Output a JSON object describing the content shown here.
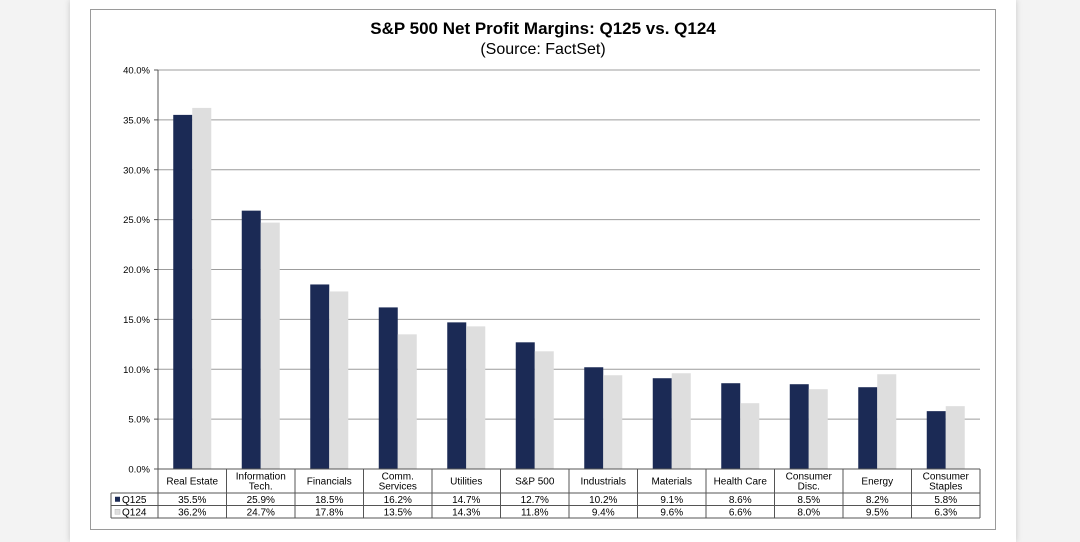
{
  "chart_data": {
    "type": "bar",
    "title": "S&P 500 Net Profit Margins: Q125 vs. Q124",
    "subtitle": "(Source: FactSet)",
    "categories": [
      [
        "Real Estate"
      ],
      [
        "Information",
        "Tech."
      ],
      [
        "Financials"
      ],
      [
        "Comm.",
        "Services"
      ],
      [
        "Utilities"
      ],
      [
        "S&P 500"
      ],
      [
        "Industrials"
      ],
      [
        "Materials"
      ],
      [
        "Health Care"
      ],
      [
        "Consumer",
        "Disc."
      ],
      [
        "Energy"
      ],
      [
        "Consumer",
        "Staples"
      ]
    ],
    "series": [
      {
        "name": "Q125",
        "color": "#1b2a55",
        "values": [
          35.5,
          25.9,
          18.5,
          16.2,
          14.7,
          12.7,
          10.2,
          9.1,
          8.6,
          8.5,
          8.2,
          5.8
        ],
        "labels": [
          "35.5%",
          "25.9%",
          "18.5%",
          "16.2%",
          "14.7%",
          "12.7%",
          "10.2%",
          "9.1%",
          "8.6%",
          "8.5%",
          "8.2%",
          "5.8%"
        ]
      },
      {
        "name": "Q124",
        "color": "#dedede",
        "values": [
          36.2,
          24.7,
          17.8,
          13.5,
          14.3,
          11.8,
          9.4,
          9.6,
          6.6,
          8.0,
          9.5,
          6.3
        ],
        "labels": [
          "36.2%",
          "24.7%",
          "17.8%",
          "13.5%",
          "14.3%",
          "11.8%",
          "9.4%",
          "9.6%",
          "6.6%",
          "8.0%",
          "9.5%",
          "6.3%"
        ]
      }
    ],
    "ylim": [
      0,
      40
    ],
    "yticks": [
      "0.0%",
      "5.0%",
      "10.0%",
      "15.0%",
      "20.0%",
      "25.0%",
      "30.0%",
      "35.0%",
      "40.0%"
    ],
    "grid": true,
    "legend": "data-table-bottom"
  }
}
